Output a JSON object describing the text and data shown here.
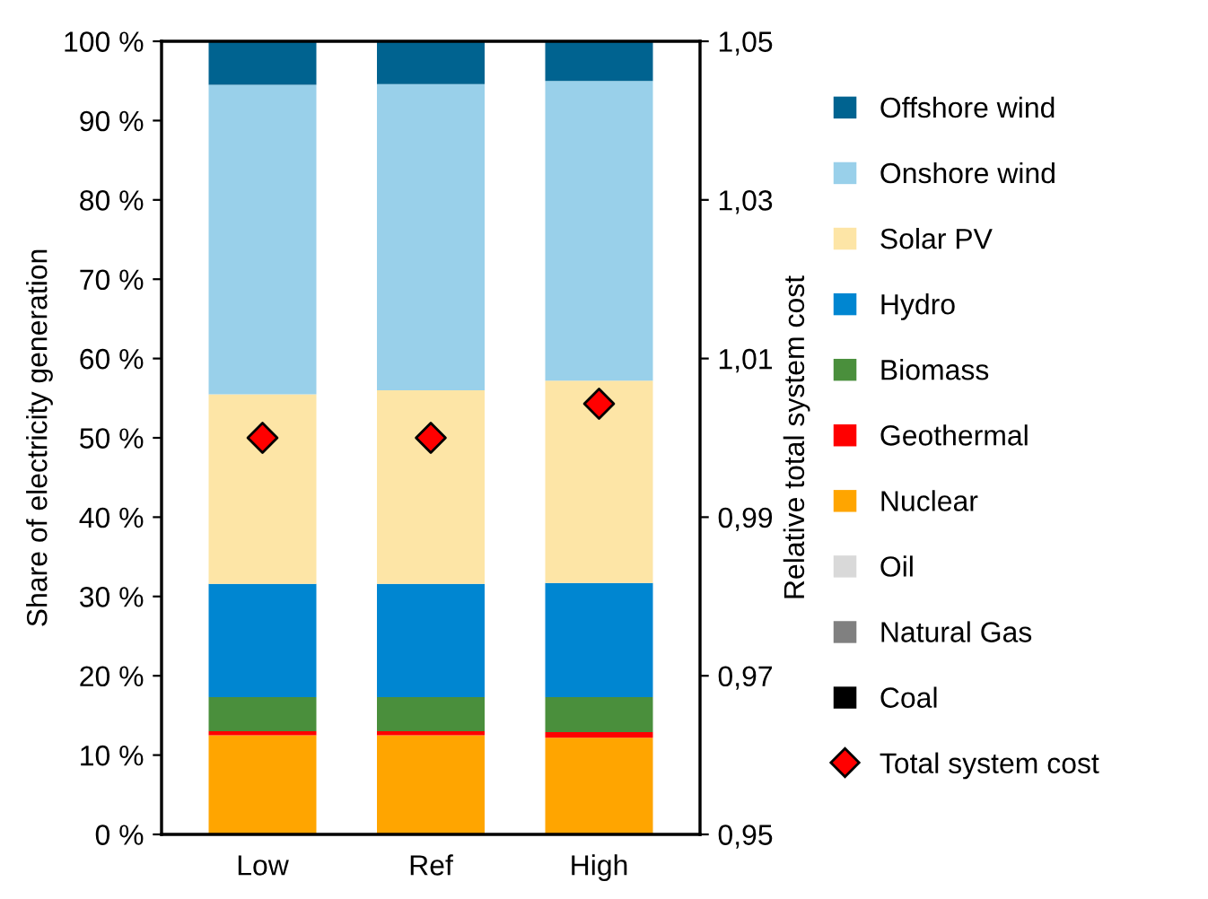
{
  "chart_data": {
    "type": "bar",
    "stacked": true,
    "categories": [
      "Low",
      "Ref",
      "High"
    ],
    "ylabel": "Share of electricity generation",
    "y2label": "Relative total system cost",
    "ylim": [
      0,
      100
    ],
    "yticks": [
      {
        "value": 0,
        "label": "0 %"
      },
      {
        "value": 10,
        "label": "10 %"
      },
      {
        "value": 20,
        "label": "20 %"
      },
      {
        "value": 30,
        "label": "30 %"
      },
      {
        "value": 40,
        "label": "40 %"
      },
      {
        "value": 50,
        "label": "50 %"
      },
      {
        "value": 60,
        "label": "60 %"
      },
      {
        "value": 70,
        "label": "70 %"
      },
      {
        "value": 80,
        "label": "80 %"
      },
      {
        "value": 90,
        "label": "90 %"
      },
      {
        "value": 100,
        "label": "100 %"
      }
    ],
    "y2lim": [
      0.95,
      1.05
    ],
    "y2ticks": [
      {
        "value": 0.95,
        "label": "0,95"
      },
      {
        "value": 0.97,
        "label": "0,97"
      },
      {
        "value": 0.99,
        "label": "0,99"
      },
      {
        "value": 1.01,
        "label": "1,01"
      },
      {
        "value": 1.03,
        "label": "1,03"
      },
      {
        "value": 1.05,
        "label": "1,05"
      }
    ],
    "legend": "right",
    "grid": false,
    "series": [
      {
        "name": "Coal",
        "color": "#000000",
        "values": [
          0,
          0,
          0
        ]
      },
      {
        "name": "Natural Gas",
        "color": "#808080",
        "values": [
          0,
          0,
          0
        ]
      },
      {
        "name": "Oil",
        "color": "#d9d9d9",
        "values": [
          0,
          0,
          0
        ]
      },
      {
        "name": "Nuclear",
        "color": "#ffa500",
        "values": [
          12.5,
          12.5,
          12.2
        ]
      },
      {
        "name": "Geothermal",
        "color": "#ff0000",
        "values": [
          0.5,
          0.5,
          0.7
        ]
      },
      {
        "name": "Biomass",
        "color": "#4a8f3c",
        "values": [
          4.3,
          4.3,
          4.4
        ]
      },
      {
        "name": "Hydro",
        "color": "#0086d1",
        "values": [
          14.3,
          14.3,
          14.4
        ]
      },
      {
        "name": "Solar PV",
        "color": "#fde5a6",
        "values": [
          23.9,
          24.4,
          25.5
        ]
      },
      {
        "name": "Onshore wind",
        "color": "#99d0ea",
        "values": [
          39.0,
          38.6,
          37.8
        ]
      },
      {
        "name": "Offshore wind",
        "color": "#006390",
        "values": [
          5.5,
          5.4,
          5.0
        ]
      },
      {
        "name": "Total system cost",
        "type": "scatter",
        "axis": "y2",
        "marker": "diamond",
        "color": "#ff0000",
        "values": [
          1.0,
          1.0,
          1.0043
        ]
      }
    ]
  }
}
